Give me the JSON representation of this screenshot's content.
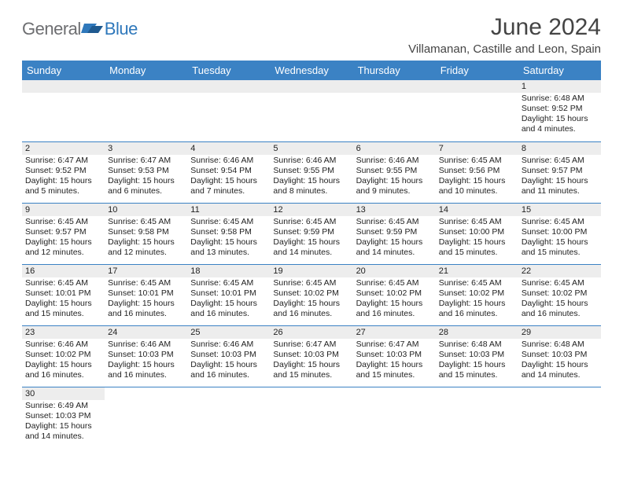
{
  "brand": {
    "general": "General",
    "blue": "Blue"
  },
  "header": {
    "title": "June 2024",
    "location": "Villamanan, Castille and Leon, Spain"
  },
  "colors": {
    "header_bg": "#3b82c4",
    "header_text": "#ffffff",
    "divider": "#3b82c4",
    "daynum_bg": "#ededed",
    "text": "#222222",
    "title_text": "#444444"
  },
  "weekdays": [
    "Sunday",
    "Monday",
    "Tuesday",
    "Wednesday",
    "Thursday",
    "Friday",
    "Saturday"
  ],
  "weeks": [
    [
      null,
      null,
      null,
      null,
      null,
      null,
      {
        "num": "1",
        "sunrise": "Sunrise: 6:48 AM",
        "sunset": "Sunset: 9:52 PM",
        "daylight": "Daylight: 15 hours and 4 minutes."
      }
    ],
    [
      {
        "num": "2",
        "sunrise": "Sunrise: 6:47 AM",
        "sunset": "Sunset: 9:52 PM",
        "daylight": "Daylight: 15 hours and 5 minutes."
      },
      {
        "num": "3",
        "sunrise": "Sunrise: 6:47 AM",
        "sunset": "Sunset: 9:53 PM",
        "daylight": "Daylight: 15 hours and 6 minutes."
      },
      {
        "num": "4",
        "sunrise": "Sunrise: 6:46 AM",
        "sunset": "Sunset: 9:54 PM",
        "daylight": "Daylight: 15 hours and 7 minutes."
      },
      {
        "num": "5",
        "sunrise": "Sunrise: 6:46 AM",
        "sunset": "Sunset: 9:55 PM",
        "daylight": "Daylight: 15 hours and 8 minutes."
      },
      {
        "num": "6",
        "sunrise": "Sunrise: 6:46 AM",
        "sunset": "Sunset: 9:55 PM",
        "daylight": "Daylight: 15 hours and 9 minutes."
      },
      {
        "num": "7",
        "sunrise": "Sunrise: 6:45 AM",
        "sunset": "Sunset: 9:56 PM",
        "daylight": "Daylight: 15 hours and 10 minutes."
      },
      {
        "num": "8",
        "sunrise": "Sunrise: 6:45 AM",
        "sunset": "Sunset: 9:57 PM",
        "daylight": "Daylight: 15 hours and 11 minutes."
      }
    ],
    [
      {
        "num": "9",
        "sunrise": "Sunrise: 6:45 AM",
        "sunset": "Sunset: 9:57 PM",
        "daylight": "Daylight: 15 hours and 12 minutes."
      },
      {
        "num": "10",
        "sunrise": "Sunrise: 6:45 AM",
        "sunset": "Sunset: 9:58 PM",
        "daylight": "Daylight: 15 hours and 12 minutes."
      },
      {
        "num": "11",
        "sunrise": "Sunrise: 6:45 AM",
        "sunset": "Sunset: 9:58 PM",
        "daylight": "Daylight: 15 hours and 13 minutes."
      },
      {
        "num": "12",
        "sunrise": "Sunrise: 6:45 AM",
        "sunset": "Sunset: 9:59 PM",
        "daylight": "Daylight: 15 hours and 14 minutes."
      },
      {
        "num": "13",
        "sunrise": "Sunrise: 6:45 AM",
        "sunset": "Sunset: 9:59 PM",
        "daylight": "Daylight: 15 hours and 14 minutes."
      },
      {
        "num": "14",
        "sunrise": "Sunrise: 6:45 AM",
        "sunset": "Sunset: 10:00 PM",
        "daylight": "Daylight: 15 hours and 15 minutes."
      },
      {
        "num": "15",
        "sunrise": "Sunrise: 6:45 AM",
        "sunset": "Sunset: 10:00 PM",
        "daylight": "Daylight: 15 hours and 15 minutes."
      }
    ],
    [
      {
        "num": "16",
        "sunrise": "Sunrise: 6:45 AM",
        "sunset": "Sunset: 10:01 PM",
        "daylight": "Daylight: 15 hours and 15 minutes."
      },
      {
        "num": "17",
        "sunrise": "Sunrise: 6:45 AM",
        "sunset": "Sunset: 10:01 PM",
        "daylight": "Daylight: 15 hours and 16 minutes."
      },
      {
        "num": "18",
        "sunrise": "Sunrise: 6:45 AM",
        "sunset": "Sunset: 10:01 PM",
        "daylight": "Daylight: 15 hours and 16 minutes."
      },
      {
        "num": "19",
        "sunrise": "Sunrise: 6:45 AM",
        "sunset": "Sunset: 10:02 PM",
        "daylight": "Daylight: 15 hours and 16 minutes."
      },
      {
        "num": "20",
        "sunrise": "Sunrise: 6:45 AM",
        "sunset": "Sunset: 10:02 PM",
        "daylight": "Daylight: 15 hours and 16 minutes."
      },
      {
        "num": "21",
        "sunrise": "Sunrise: 6:45 AM",
        "sunset": "Sunset: 10:02 PM",
        "daylight": "Daylight: 15 hours and 16 minutes."
      },
      {
        "num": "22",
        "sunrise": "Sunrise: 6:45 AM",
        "sunset": "Sunset: 10:02 PM",
        "daylight": "Daylight: 15 hours and 16 minutes."
      }
    ],
    [
      {
        "num": "23",
        "sunrise": "Sunrise: 6:46 AM",
        "sunset": "Sunset: 10:02 PM",
        "daylight": "Daylight: 15 hours and 16 minutes."
      },
      {
        "num": "24",
        "sunrise": "Sunrise: 6:46 AM",
        "sunset": "Sunset: 10:03 PM",
        "daylight": "Daylight: 15 hours and 16 minutes."
      },
      {
        "num": "25",
        "sunrise": "Sunrise: 6:46 AM",
        "sunset": "Sunset: 10:03 PM",
        "daylight": "Daylight: 15 hours and 16 minutes."
      },
      {
        "num": "26",
        "sunrise": "Sunrise: 6:47 AM",
        "sunset": "Sunset: 10:03 PM",
        "daylight": "Daylight: 15 hours and 15 minutes."
      },
      {
        "num": "27",
        "sunrise": "Sunrise: 6:47 AM",
        "sunset": "Sunset: 10:03 PM",
        "daylight": "Daylight: 15 hours and 15 minutes."
      },
      {
        "num": "28",
        "sunrise": "Sunrise: 6:48 AM",
        "sunset": "Sunset: 10:03 PM",
        "daylight": "Daylight: 15 hours and 15 minutes."
      },
      {
        "num": "29",
        "sunrise": "Sunrise: 6:48 AM",
        "sunset": "Sunset: 10:03 PM",
        "daylight": "Daylight: 15 hours and 14 minutes."
      }
    ],
    [
      {
        "num": "30",
        "sunrise": "Sunrise: 6:49 AM",
        "sunset": "Sunset: 10:03 PM",
        "daylight": "Daylight: 15 hours and 14 minutes."
      },
      null,
      null,
      null,
      null,
      null,
      null
    ]
  ]
}
